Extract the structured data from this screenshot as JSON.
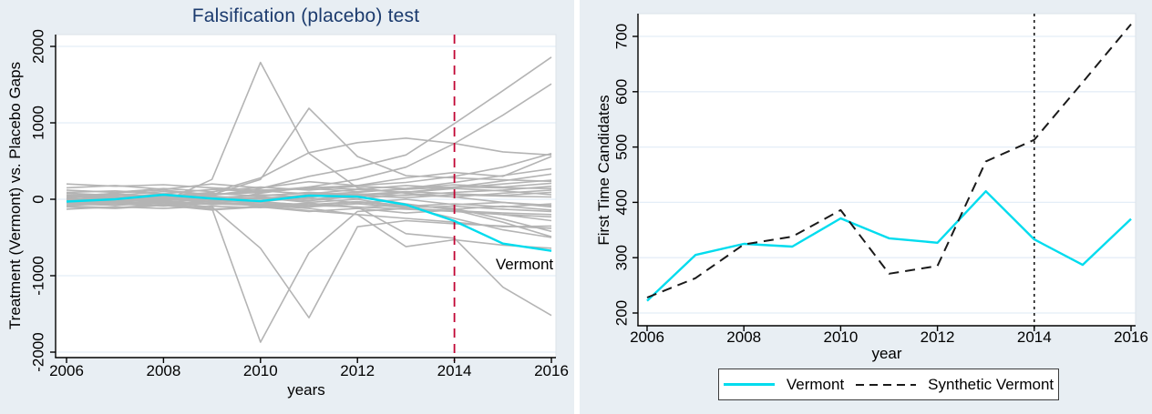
{
  "colors": {
    "panel_background": "#e8eef3",
    "plot_background": "#ffffff",
    "gridline": "#e4edf7",
    "plot_border": "#dbe3ea",
    "axis": "#000000",
    "placebo_gray": "#b4b4b4",
    "vermont_cyan": "#00dcee",
    "synthetic_black": "#1a1a1a",
    "treatment_line_red": "#c10534",
    "title_navy": "#1c3b6e",
    "text_black": "#000000",
    "legend_border": "#3c3c3c"
  },
  "chart_data": [
    {
      "type": "line",
      "title": "Falsification (placebo) test",
      "xlabel": "years",
      "ylabel": "Treatment (Vermont) vs. Placebo Gaps",
      "x": [
        2006,
        2007,
        2008,
        2009,
        2010,
        2011,
        2012,
        2013,
        2014,
        2015,
        2016
      ],
      "x_ticks": [
        2006,
        2008,
        2010,
        2012,
        2014,
        2016
      ],
      "y_ticks": [
        -2000,
        -1000,
        0,
        1000,
        2000
      ],
      "ylim": [
        -2150,
        2150
      ],
      "grid": true,
      "legend_position": "none",
      "vline": {
        "x": 2014,
        "style": "dashed",
        "color_key": "treatment_line_red"
      },
      "annotation": {
        "text": "Vermont",
        "x": 2014.85,
        "y": -860
      },
      "series": [
        {
          "name": "Vermont",
          "color_key": "vermont_cyan",
          "dash": "solid",
          "values": [
            -30,
            0,
            60,
            10,
            -25,
            48,
            35,
            -70,
            -285,
            -580,
            -675
          ]
        }
      ],
      "background_series": {
        "name": "placebo gaps (donor states)",
        "color_key": "placebo_gray",
        "lines": [
          [
            -20,
            10,
            -30,
            260,
            1790,
            600,
            150,
            80,
            30,
            -40,
            -80
          ],
          [
            10,
            -40,
            20,
            60,
            260,
            1190,
            560,
            310,
            280,
            255,
            235
          ],
          [
            0,
            40,
            -10,
            50,
            140,
            300,
            420,
            580,
            990,
            1420,
            1860
          ],
          [
            -30,
            -10,
            30,
            -40,
            80,
            160,
            260,
            420,
            730,
            1100,
            1510
          ],
          [
            20,
            60,
            40,
            90,
            280,
            610,
            740,
            800,
            730,
            620,
            580
          ],
          [
            -40,
            -20,
            -60,
            -120,
            -1870,
            -700,
            -160,
            -120,
            -150,
            -180,
            -200
          ],
          [
            -60,
            -80,
            -40,
            -100,
            -640,
            -1550,
            -360,
            -280,
            -320,
            -350,
            -380
          ],
          [
            0,
            -20,
            10,
            -40,
            -60,
            -80,
            -100,
            -450,
            -510,
            -1150,
            -1520
          ],
          [
            -20,
            -40,
            -30,
            -60,
            -80,
            -120,
            -200,
            -620,
            -530,
            -600,
            -640
          ],
          [
            200,
            170,
            190,
            150,
            120,
            140,
            100,
            130,
            160,
            150,
            140
          ],
          [
            -130,
            -100,
            -120,
            -90,
            -110,
            -80,
            -100,
            -130,
            -160,
            -200,
            -230
          ],
          [
            30,
            80,
            120,
            60,
            90,
            150,
            180,
            220,
            300,
            420,
            600
          ],
          [
            -10,
            20,
            -20,
            30,
            10,
            60,
            90,
            140,
            220,
            310,
            400
          ],
          [
            60,
            30,
            70,
            20,
            50,
            80,
            40,
            90,
            160,
            240,
            330
          ],
          [
            -50,
            -30,
            -60,
            -20,
            -40,
            -70,
            -30,
            -80,
            -120,
            -260,
            -420
          ],
          [
            10,
            -10,
            30,
            -30,
            20,
            -20,
            40,
            -60,
            -140,
            -300,
            -490
          ],
          [
            90,
            110,
            70,
            130,
            100,
            160,
            130,
            180,
            150,
            200,
            250
          ],
          [
            -80,
            -60,
            -90,
            -50,
            -70,
            -100,
            -60,
            -110,
            -90,
            -130,
            -160
          ],
          [
            40,
            20,
            50,
            10,
            60,
            30,
            70,
            50,
            90,
            120,
            170
          ],
          [
            -20,
            0,
            -40,
            10,
            -30,
            20,
            -50,
            0,
            -70,
            -40,
            -100
          ],
          [
            120,
            90,
            140,
            100,
            160,
            120,
            170,
            140,
            190,
            160,
            210
          ],
          [
            -100,
            -120,
            -80,
            -140,
            -100,
            -160,
            -120,
            -180,
            -140,
            -200,
            -280
          ],
          [
            0,
            30,
            -10,
            40,
            0,
            50,
            10,
            60,
            30,
            80,
            120
          ],
          [
            50,
            70,
            30,
            80,
            40,
            90,
            60,
            100,
            70,
            50,
            90
          ],
          [
            -40,
            -60,
            -20,
            -70,
            -30,
            -80,
            -40,
            -90,
            -60,
            -100,
            -60
          ],
          [
            20,
            -20,
            40,
            -10,
            30,
            0,
            50,
            20,
            60,
            40,
            30
          ],
          [
            -60,
            -40,
            -80,
            -30,
            -90,
            -50,
            -110,
            -70,
            -130,
            -90,
            -140
          ],
          [
            80,
            50,
            100,
            60,
            110,
            70,
            130,
            90,
            140,
            110,
            60
          ],
          [
            150,
            180,
            130,
            200,
            150,
            230,
            180,
            280,
            350,
            300,
            560
          ],
          [
            -90,
            -110,
            -70,
            -130,
            -90,
            -150,
            -200,
            -250,
            -300,
            -360,
            -350
          ],
          [
            10,
            -20,
            30,
            -10,
            20,
            -40,
            0,
            -100,
            -250,
            -400,
            -500
          ]
        ]
      }
    },
    {
      "type": "line",
      "title": "",
      "xlabel": "year",
      "ylabel": "First Time Candidates",
      "x": [
        2006,
        2007,
        2008,
        2009,
        2010,
        2011,
        2012,
        2013,
        2014,
        2015,
        2016
      ],
      "x_ticks": [
        2006,
        2008,
        2010,
        2012,
        2014,
        2016
      ],
      "y_ticks": [
        200,
        300,
        400,
        500,
        600,
        700
      ],
      "ylim": [
        190,
        735
      ],
      "grid": true,
      "legend_position": "bottom",
      "vline": {
        "x": 2014,
        "style": "dotted",
        "color_key": "synthetic_black"
      },
      "series": [
        {
          "name": "Vermont",
          "color_key": "vermont_cyan",
          "dash": "solid",
          "values": [
            222,
            305,
            325,
            320,
            371,
            335,
            327,
            420,
            333,
            287,
            370
          ]
        },
        {
          "name": "Synthetic Vermont",
          "color_key": "synthetic_black",
          "dash": "dashed",
          "values": [
            228,
            263,
            324,
            338,
            386,
            271,
            285,
            474,
            513,
            617,
            722
          ]
        }
      ]
    }
  ]
}
